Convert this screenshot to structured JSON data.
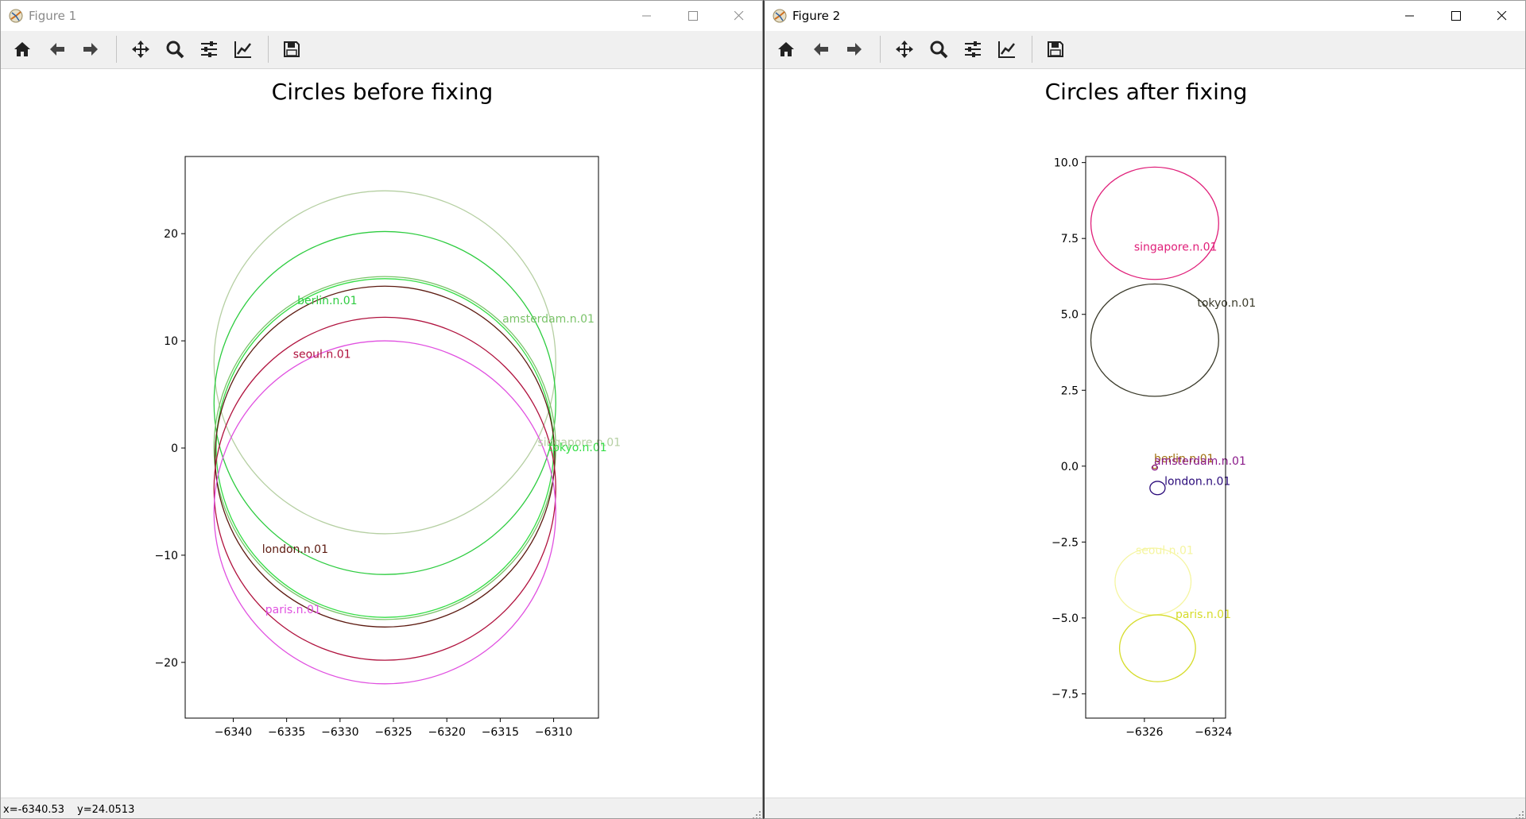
{
  "windows": [
    {
      "title": "Figure 1",
      "figure_title": "Circles before fixing",
      "status": {
        "x": "x=-6340.53",
        "y": "y=24.0513"
      }
    },
    {
      "title": "Figure 2",
      "figure_title": "Circles after fixing",
      "status": {
        "x": "",
        "y": ""
      }
    }
  ],
  "toolbar": [
    "home-icon",
    "back-arrow-icon",
    "forward-arrow-icon",
    "pan-icon",
    "zoom-icon",
    "configure-subplots-icon",
    "edit-axis-icon",
    "save-icon"
  ],
  "chart_data": [
    {
      "type": "scatter",
      "title": "Circles before fixing",
      "xlim": [
        -6344.5,
        -6305.8
      ],
      "ylim": [
        -25.2,
        27.2
      ],
      "xticks": [
        -6340,
        -6335,
        -6330,
        -6325,
        -6320,
        -6315,
        -6310
      ],
      "yticks": [
        -20,
        -10,
        0,
        10,
        20
      ],
      "grid": false,
      "circles": [
        {
          "label": "singapore.n.01",
          "cx": -6325.8,
          "cy": 8.0,
          "r": 16.0,
          "color": "#b5cfa2",
          "label_x": -6311.5,
          "label_y": 0.2
        },
        {
          "label": "berlin.n.01",
          "cx": -6325.8,
          "cy": 4.2,
          "r": 16.0,
          "color": "#2ecc40",
          "label_x": -6334.0,
          "label_y": 13.4
        },
        {
          "label": "amsterdam.n.01",
          "cx": -6325.8,
          "cy": 0.0,
          "r": 16.0,
          "color": "#7bc36a",
          "label_x": -6314.8,
          "label_y": 11.7
        },
        {
          "label": "tokyo.n.01",
          "cx": -6325.8,
          "cy": 0.0,
          "r": 15.8,
          "color": "#33dd44",
          "label_x": -6310.5,
          "label_y": -0.3
        },
        {
          "label": "london.n.01",
          "cx": -6325.8,
          "cy": -0.8,
          "r": 15.9,
          "color": "#5c1a10",
          "label_x": -6337.3,
          "label_y": -9.8
        },
        {
          "label": "seoul.n.01",
          "cx": -6325.8,
          "cy": -3.8,
          "r": 16.0,
          "color": "#b0123e",
          "label_x": -6334.4,
          "label_y": 8.4
        },
        {
          "label": "paris.n.01",
          "cx": -6325.8,
          "cy": -6.0,
          "r": 16.0,
          "color": "#e050e0",
          "label_x": -6337.0,
          "label_y": -15.4
        }
      ]
    },
    {
      "type": "scatter",
      "title": "Circles after fixing",
      "xlim": [
        -6327.7,
        -6323.65
      ],
      "ylim": [
        -8.3,
        10.2
      ],
      "xticks": [
        -6326,
        -6324
      ],
      "yticks": [
        -7.5,
        -5.0,
        -2.5,
        0.0,
        2.5,
        5.0,
        7.5,
        10.0
      ],
      "grid": false,
      "circles": [
        {
          "label": "singapore.n.01",
          "cx": -6325.7,
          "cy": 8.0,
          "r": 1.85,
          "color": "#e0207a",
          "label_x": -6326.3,
          "label_y": 7.1
        },
        {
          "label": "tokyo.n.01",
          "cx": -6325.7,
          "cy": 4.15,
          "r": 1.85,
          "color": "#3a3a2a",
          "label_x": -6324.47,
          "label_y": 5.25
        },
        {
          "label": "berlin.n.01",
          "cx": -6325.7,
          "cy": -0.02,
          "r": 0.06,
          "color": "#a07010",
          "label_x": -6325.72,
          "label_y": 0.12
        },
        {
          "label": "amsterdam.n.01",
          "cx": -6325.7,
          "cy": -0.05,
          "r": 0.08,
          "color": "#8a1a8a",
          "label_x": -6325.72,
          "label_y": 0.05
        },
        {
          "label": "london.n.01",
          "cx": -6325.62,
          "cy": -0.72,
          "r": 0.22,
          "color": "#2a0a7a",
          "label_x": -6325.42,
          "label_y": -0.62
        },
        {
          "label": "seoul.n.01",
          "cx": -6325.75,
          "cy": -3.8,
          "r": 1.1,
          "color": "#f5f5a0",
          "label_x": -6326.25,
          "label_y": -2.9
        },
        {
          "label": "paris.n.01",
          "cx": -6325.62,
          "cy": -6.0,
          "r": 1.1,
          "color": "#d6dc2a",
          "label_x": -6325.1,
          "label_y": -5.0
        }
      ]
    }
  ]
}
